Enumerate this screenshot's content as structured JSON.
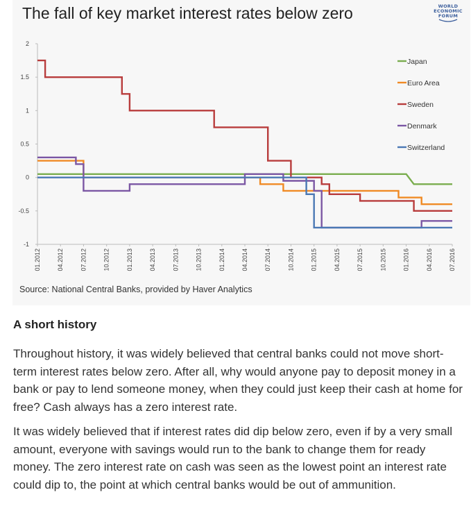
{
  "chart_data": {
    "type": "line",
    "step": true,
    "title": "The fall of key market interest rates below zero",
    "source": "Source: National Central Banks, provided by Haver Analytics",
    "ylim": [
      -1,
      2
    ],
    "yticks": [
      "2",
      "1.5",
      "1",
      "0.5",
      "0",
      "-0.5",
      "-1"
    ],
    "ytick_values": [
      2,
      1.5,
      1,
      0.5,
      0,
      -0.5,
      -1
    ],
    "xlim": [
      "01.2012",
      "07.2016"
    ],
    "xticks": [
      "01.2012",
      "04.2012",
      "07.2012",
      "10.2012",
      "01.2013",
      "04.2013",
      "07.2013",
      "10.2013",
      "01.2014",
      "04.2014",
      "07.2014",
      "10.2014",
      "01.2015",
      "04.2015",
      "07.2015",
      "10.2015",
      "01.2016",
      "04.2016",
      "07.2016"
    ],
    "legend_position": "right",
    "grid": false,
    "series": [
      {
        "name": "Japan",
        "color": "#7aad4e",
        "points": [
          [
            "2012-01",
            0.05
          ],
          [
            "2016-01",
            0.05
          ],
          [
            "2016-02",
            -0.1
          ],
          [
            "2016-07",
            -0.1
          ]
        ]
      },
      {
        "name": "Euro Area",
        "color": "#f08a24",
        "points": [
          [
            "2012-01",
            0.25
          ],
          [
            "2012-07",
            0.25
          ],
          [
            "2012-07",
            0.0
          ],
          [
            "2014-06",
            0.0
          ],
          [
            "2014-06",
            -0.1
          ],
          [
            "2014-09",
            -0.1
          ],
          [
            "2014-09",
            -0.2
          ],
          [
            "2015-12",
            -0.2
          ],
          [
            "2015-12",
            -0.3
          ],
          [
            "2016-03",
            -0.3
          ],
          [
            "2016-03",
            -0.4
          ],
          [
            "2016-07",
            -0.4
          ]
        ]
      },
      {
        "name": "Sweden",
        "color": "#b83c3c",
        "points": [
          [
            "2012-01",
            1.75
          ],
          [
            "2012-02",
            1.75
          ],
          [
            "2012-02",
            1.5
          ],
          [
            "2012-12",
            1.5
          ],
          [
            "2012-12",
            1.25
          ],
          [
            "2013-01",
            1.25
          ],
          [
            "2013-01",
            1.0
          ],
          [
            "2013-12",
            1.0
          ],
          [
            "2013-12",
            0.75
          ],
          [
            "2014-07",
            0.75
          ],
          [
            "2014-07",
            0.25
          ],
          [
            "2014-10",
            0.25
          ],
          [
            "2014-10",
            0.0
          ],
          [
            "2015-02",
            0.0
          ],
          [
            "2015-02",
            -0.1
          ],
          [
            "2015-03",
            -0.1
          ],
          [
            "2015-03",
            -0.25
          ],
          [
            "2015-07",
            -0.25
          ],
          [
            "2015-07",
            -0.35
          ],
          [
            "2016-02",
            -0.35
          ],
          [
            "2016-02",
            -0.5
          ],
          [
            "2016-07",
            -0.5
          ]
        ]
      },
      {
        "name": "Denmark",
        "color": "#7b57a4",
        "points": [
          [
            "2012-01",
            0.3
          ],
          [
            "2012-06",
            0.3
          ],
          [
            "2012-06",
            0.2
          ],
          [
            "2012-07",
            0.2
          ],
          [
            "2012-07",
            -0.2
          ],
          [
            "2013-01",
            -0.2
          ],
          [
            "2013-01",
            -0.1
          ],
          [
            "2014-04",
            -0.1
          ],
          [
            "2014-04",
            0.05
          ],
          [
            "2014-09",
            0.05
          ],
          [
            "2014-09",
            -0.05
          ],
          [
            "2015-01",
            -0.05
          ],
          [
            "2015-01",
            -0.2
          ],
          [
            "2015-02",
            -0.2
          ],
          [
            "2015-02",
            -0.5
          ],
          [
            "2015-02",
            -0.75
          ],
          [
            "2016-03",
            -0.75
          ],
          [
            "2016-03",
            -0.65
          ],
          [
            "2016-07",
            -0.65
          ]
        ]
      },
      {
        "name": "Switzerland",
        "color": "#4a78b4",
        "points": [
          [
            "2012-01",
            0.0
          ],
          [
            "2014-12",
            0.0
          ],
          [
            "2014-12",
            -0.25
          ],
          [
            "2015-01",
            -0.25
          ],
          [
            "2015-01",
            -0.75
          ],
          [
            "2016-07",
            -0.75
          ]
        ]
      }
    ]
  },
  "logo": {
    "line1": "WORLD",
    "line2": "ECONOMIC",
    "line3": "FORUM"
  },
  "article": {
    "heading": "A short history",
    "paragraphs": [
      "Throughout history, it was widely believed that central banks could not move short-term interest rates below zero. After all, why would anyone pay to deposit money in a bank or pay to lend someone money, when they could just keep their cash at home for free? Cash always has a zero interest rate.",
      "It was widely believed that if interest rates did dip below zero, even if by a very small amount, everyone with savings would run to the bank to change them for ready money. The zero interest rate on cash was seen as the lowest point an interest rate could dip to, the point at which central banks would be out of ammunition."
    ]
  }
}
